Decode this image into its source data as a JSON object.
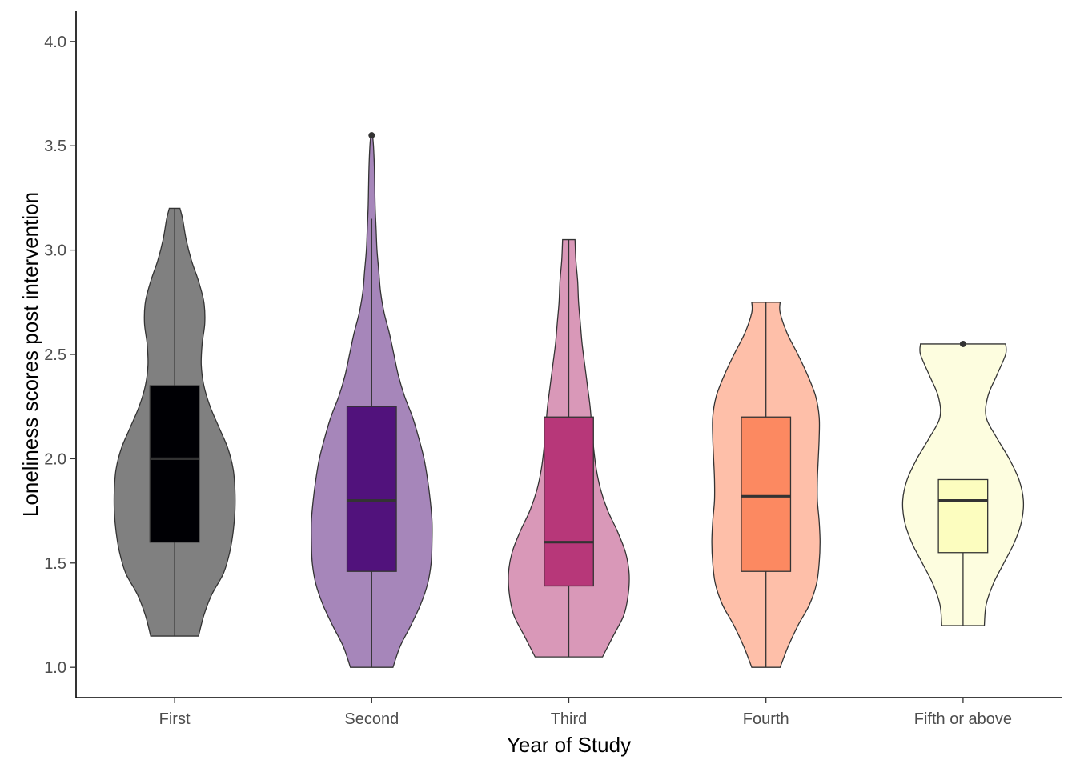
{
  "chart_data": {
    "type": "violin",
    "xlabel": "Year of Study",
    "ylabel": "Loneliness scores post intervention",
    "ylim": [
      0.855,
      4.145
    ],
    "yticks": [
      1.0,
      1.5,
      2.0,
      2.5,
      3.0,
      3.5,
      4.0
    ],
    "ytick_labels": [
      "1.0",
      "1.5",
      "2.0",
      "2.5",
      "3.0",
      "3.5",
      "4.0"
    ],
    "grid": false,
    "legend": "none",
    "categories": [
      "First",
      "Second",
      "Third",
      "Fourth",
      "Fifth or above"
    ],
    "groups": [
      {
        "category": "First",
        "violin_color": "#808080",
        "box_color": "#000004",
        "violin_range": [
          1.15,
          3.2
        ],
        "box": {
          "whisker_low": 1.15,
          "q1": 1.6,
          "median": 2.0,
          "q3": 2.35,
          "whisker_high": 3.2
        },
        "outliers": [],
        "density": [
          [
            1.15,
            0.27
          ],
          [
            1.25,
            0.33
          ],
          [
            1.35,
            0.42
          ],
          [
            1.45,
            0.55
          ],
          [
            1.55,
            0.62
          ],
          [
            1.65,
            0.66
          ],
          [
            1.75,
            0.68
          ],
          [
            1.85,
            0.68
          ],
          [
            1.95,
            0.66
          ],
          [
            2.05,
            0.6
          ],
          [
            2.15,
            0.5
          ],
          [
            2.25,
            0.4
          ],
          [
            2.35,
            0.33
          ],
          [
            2.45,
            0.3
          ],
          [
            2.55,
            0.31
          ],
          [
            2.65,
            0.34
          ],
          [
            2.75,
            0.33
          ],
          [
            2.85,
            0.27
          ],
          [
            2.95,
            0.19
          ],
          [
            3.05,
            0.13
          ],
          [
            3.15,
            0.09
          ],
          [
            3.2,
            0.06
          ]
        ]
      },
      {
        "category": "Second",
        "violin_color": "#A686BA",
        "box_color": "#51127C",
        "violin_range": [
          1.0,
          3.55
        ],
        "box": {
          "whisker_low": 1.0,
          "q1": 1.46,
          "median": 1.8,
          "q3": 2.25,
          "whisker_high": 3.15
        },
        "outliers": [
          3.55
        ],
        "density": [
          [
            1.0,
            0.24
          ],
          [
            1.1,
            0.32
          ],
          [
            1.2,
            0.44
          ],
          [
            1.3,
            0.55
          ],
          [
            1.4,
            0.63
          ],
          [
            1.5,
            0.67
          ],
          [
            1.6,
            0.68
          ],
          [
            1.7,
            0.68
          ],
          [
            1.8,
            0.66
          ],
          [
            1.9,
            0.63
          ],
          [
            2.0,
            0.59
          ],
          [
            2.1,
            0.53
          ],
          [
            2.2,
            0.46
          ],
          [
            2.3,
            0.37
          ],
          [
            2.4,
            0.3
          ],
          [
            2.5,
            0.25
          ],
          [
            2.6,
            0.2
          ],
          [
            2.7,
            0.14
          ],
          [
            2.8,
            0.1
          ],
          [
            2.9,
            0.08
          ],
          [
            3.0,
            0.06
          ],
          [
            3.1,
            0.05
          ],
          [
            3.2,
            0.04
          ],
          [
            3.3,
            0.035
          ],
          [
            3.4,
            0.03
          ],
          [
            3.5,
            0.02
          ],
          [
            3.55,
            0.01
          ]
        ]
      },
      {
        "category": "Third",
        "violin_color": "#D998B8",
        "box_color": "#B73779",
        "violin_range": [
          1.05,
          3.05
        ],
        "box": {
          "whisker_low": 1.05,
          "q1": 1.39,
          "median": 1.6,
          "q3": 2.2,
          "whisker_high": 3.05
        },
        "outliers": [],
        "density": [
          [
            1.05,
            0.38
          ],
          [
            1.15,
            0.5
          ],
          [
            1.25,
            0.62
          ],
          [
            1.35,
            0.67
          ],
          [
            1.45,
            0.68
          ],
          [
            1.55,
            0.64
          ],
          [
            1.65,
            0.55
          ],
          [
            1.75,
            0.44
          ],
          [
            1.85,
            0.36
          ],
          [
            1.95,
            0.31
          ],
          [
            2.05,
            0.28
          ],
          [
            2.15,
            0.26
          ],
          [
            2.25,
            0.24
          ],
          [
            2.35,
            0.21
          ],
          [
            2.45,
            0.18
          ],
          [
            2.55,
            0.15
          ],
          [
            2.65,
            0.13
          ],
          [
            2.75,
            0.11
          ],
          [
            2.85,
            0.1
          ],
          [
            2.95,
            0.08
          ],
          [
            3.05,
            0.07
          ]
        ]
      },
      {
        "category": "Fourth",
        "violin_color": "#FEBFA9",
        "box_color": "#FC8961",
        "violin_range": [
          1.0,
          2.75
        ],
        "box": {
          "whisker_low": 1.0,
          "q1": 1.46,
          "median": 1.82,
          "q3": 2.2,
          "whisker_high": 2.75
        },
        "outliers": [],
        "density": [
          [
            1.0,
            0.16
          ],
          [
            1.1,
            0.25
          ],
          [
            1.2,
            0.36
          ],
          [
            1.3,
            0.49
          ],
          [
            1.4,
            0.57
          ],
          [
            1.5,
            0.6
          ],
          [
            1.6,
            0.61
          ],
          [
            1.7,
            0.6
          ],
          [
            1.8,
            0.58
          ],
          [
            1.9,
            0.58
          ],
          [
            2.0,
            0.59
          ],
          [
            2.1,
            0.6
          ],
          [
            2.2,
            0.6
          ],
          [
            2.3,
            0.56
          ],
          [
            2.4,
            0.47
          ],
          [
            2.5,
            0.36
          ],
          [
            2.6,
            0.24
          ],
          [
            2.7,
            0.16
          ],
          [
            2.75,
            0.16
          ]
        ]
      },
      {
        "category": "Fifth or above",
        "violin_color": "#FDFDDF",
        "box_color": "#FCFDBF",
        "violin_range": [
          1.2,
          2.55
        ],
        "box": {
          "whisker_low": 1.2,
          "q1": 1.55,
          "median": 1.8,
          "q3": 1.9,
          "whisker_high": 1.9
        },
        "outliers": [
          2.55
        ],
        "density": [
          [
            1.2,
            0.24
          ],
          [
            1.3,
            0.26
          ],
          [
            1.4,
            0.34
          ],
          [
            1.5,
            0.46
          ],
          [
            1.6,
            0.58
          ],
          [
            1.7,
            0.66
          ],
          [
            1.8,
            0.68
          ],
          [
            1.9,
            0.63
          ],
          [
            2.0,
            0.52
          ],
          [
            2.1,
            0.38
          ],
          [
            2.2,
            0.26
          ],
          [
            2.3,
            0.28
          ],
          [
            2.4,
            0.38
          ],
          [
            2.5,
            0.48
          ],
          [
            2.55,
            0.48
          ]
        ]
      }
    ]
  }
}
